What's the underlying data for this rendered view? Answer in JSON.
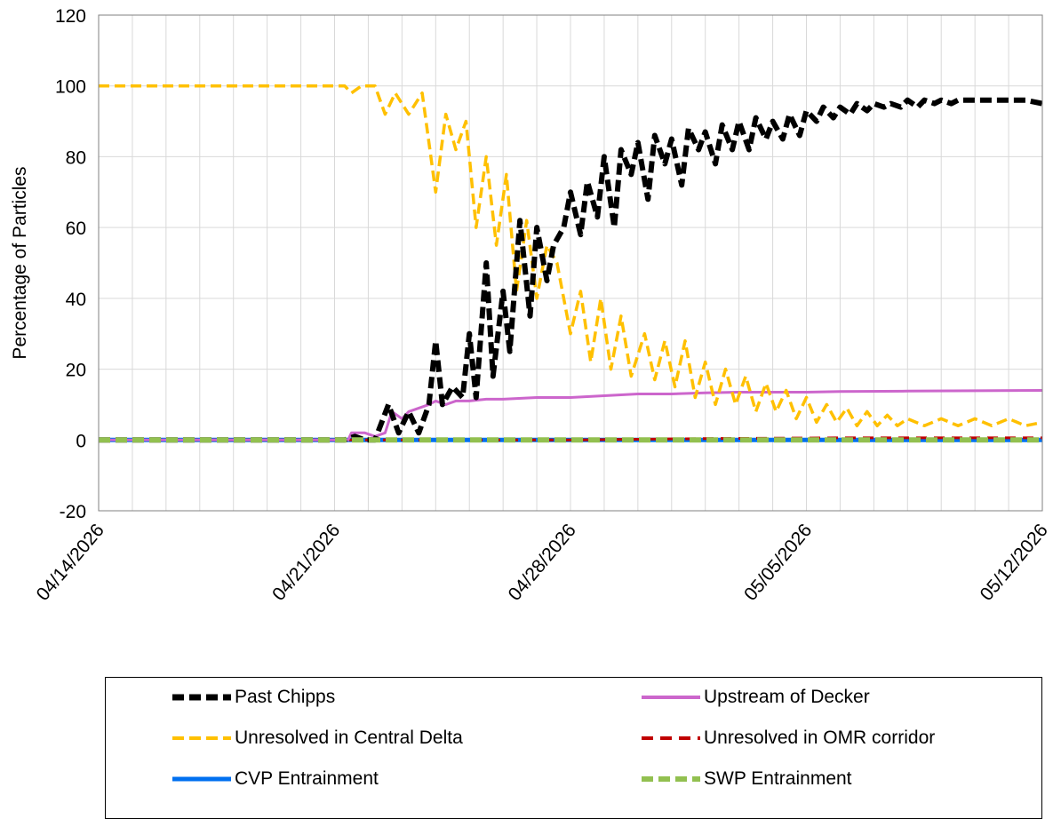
{
  "chart_data": {
    "type": "line",
    "title": "",
    "ylabel": "Percentage of Particles",
    "xlabel": "",
    "ylim": [
      -20,
      120
    ],
    "yticks": [
      -20,
      0,
      20,
      40,
      60,
      80,
      100,
      120
    ],
    "xlim": [
      "04/14/2026",
      "05/12/2026"
    ],
    "xtick_labels": [
      "04/14/2026",
      "04/21/2026",
      "04/28/2026",
      "05/05/2026",
      "05/12/2026"
    ],
    "grid": "vertical daily gridlines, horizontal gridlines at each y tick",
    "legend_position": "bottom",
    "series": [
      {
        "name": "Past Chipps",
        "color": "#000000",
        "style": "dashed",
        "points": [
          [
            0,
            0
          ],
          [
            7.3,
            0
          ],
          [
            7.6,
            1
          ],
          [
            7.9,
            0
          ],
          [
            8.2,
            0
          ],
          [
            8.6,
            10
          ],
          [
            8.9,
            2
          ],
          [
            9.2,
            8
          ],
          [
            9.5,
            2
          ],
          [
            9.8,
            10
          ],
          [
            10.0,
            28
          ],
          [
            10.2,
            10
          ],
          [
            10.5,
            15
          ],
          [
            10.8,
            12
          ],
          [
            11.0,
            30
          ],
          [
            11.2,
            12
          ],
          [
            11.5,
            50
          ],
          [
            11.7,
            18
          ],
          [
            12.0,
            42
          ],
          [
            12.2,
            25
          ],
          [
            12.5,
            62
          ],
          [
            12.8,
            35
          ],
          [
            13.0,
            60
          ],
          [
            13.3,
            45
          ],
          [
            13.5,
            55
          ],
          [
            13.8,
            60
          ],
          [
            14.0,
            70
          ],
          [
            14.3,
            58
          ],
          [
            14.5,
            73
          ],
          [
            14.8,
            63
          ],
          [
            15.0,
            80
          ],
          [
            15.3,
            60
          ],
          [
            15.5,
            82
          ],
          [
            15.8,
            75
          ],
          [
            16.0,
            84
          ],
          [
            16.3,
            68
          ],
          [
            16.5,
            86
          ],
          [
            16.8,
            78
          ],
          [
            17.0,
            85
          ],
          [
            17.3,
            72
          ],
          [
            17.5,
            88
          ],
          [
            17.8,
            82
          ],
          [
            18.0,
            87
          ],
          [
            18.3,
            78
          ],
          [
            18.5,
            89
          ],
          [
            18.8,
            82
          ],
          [
            19.0,
            90
          ],
          [
            19.3,
            82
          ],
          [
            19.5,
            91
          ],
          [
            19.8,
            85
          ],
          [
            20.0,
            90
          ],
          [
            20.3,
            85
          ],
          [
            20.5,
            92
          ],
          [
            20.8,
            86
          ],
          [
            21.0,
            93
          ],
          [
            21.3,
            90
          ],
          [
            21.5,
            94
          ],
          [
            21.8,
            91
          ],
          [
            22.0,
            94
          ],
          [
            22.3,
            92
          ],
          [
            22.5,
            95
          ],
          [
            22.8,
            93
          ],
          [
            23.0,
            95
          ],
          [
            23.3,
            94
          ],
          [
            23.5,
            95
          ],
          [
            23.8,
            94
          ],
          [
            24.0,
            96
          ],
          [
            24.3,
            94
          ],
          [
            24.5,
            96
          ],
          [
            24.8,
            95
          ],
          [
            25.0,
            96
          ],
          [
            25.3,
            95
          ],
          [
            25.5,
            96
          ],
          [
            26.0,
            96
          ],
          [
            26.5,
            96
          ],
          [
            27.0,
            96
          ],
          [
            27.5,
            96
          ],
          [
            28.0,
            95
          ]
        ]
      },
      {
        "name": "Upstream of Decker",
        "color": "#CC66CC",
        "style": "solid",
        "points": [
          [
            0,
            0
          ],
          [
            7.4,
            0
          ],
          [
            7.5,
            2
          ],
          [
            7.9,
            2
          ],
          [
            8.2,
            1
          ],
          [
            8.5,
            2
          ],
          [
            8.7,
            8
          ],
          [
            9.0,
            6
          ],
          [
            9.2,
            8
          ],
          [
            9.5,
            9
          ],
          [
            9.8,
            10
          ],
          [
            10.0,
            11
          ],
          [
            10.3,
            10
          ],
          [
            10.6,
            11
          ],
          [
            11.0,
            11
          ],
          [
            11.5,
            11.5
          ],
          [
            12.0,
            11.5
          ],
          [
            13.0,
            12
          ],
          [
            14.0,
            12
          ],
          [
            15.0,
            12.5
          ],
          [
            16.0,
            13
          ],
          [
            17.0,
            13
          ],
          [
            18.0,
            13.3
          ],
          [
            19.0,
            13.5
          ],
          [
            20.0,
            13.5
          ],
          [
            21.0,
            13.5
          ],
          [
            22.0,
            13.7
          ],
          [
            24.0,
            13.8
          ],
          [
            26.0,
            13.9
          ],
          [
            28.0,
            14
          ]
        ]
      },
      {
        "name": "Unresolved in Central Delta",
        "color": "#FFC000",
        "style": "dashed",
        "points": [
          [
            0,
            100
          ],
          [
            7.3,
            100
          ],
          [
            7.5,
            98
          ],
          [
            7.8,
            100
          ],
          [
            8.2,
            100
          ],
          [
            8.5,
            92
          ],
          [
            8.8,
            98
          ],
          [
            9.2,
            92
          ],
          [
            9.6,
            98
          ],
          [
            10.0,
            70
          ],
          [
            10.3,
            92
          ],
          [
            10.6,
            82
          ],
          [
            10.9,
            90
          ],
          [
            11.2,
            60
          ],
          [
            11.5,
            80
          ],
          [
            11.8,
            55
          ],
          [
            12.1,
            75
          ],
          [
            12.4,
            42
          ],
          [
            12.7,
            62
          ],
          [
            13.0,
            40
          ],
          [
            13.3,
            55
          ],
          [
            13.6,
            50
          ],
          [
            14.0,
            30
          ],
          [
            14.3,
            42
          ],
          [
            14.6,
            22
          ],
          [
            14.9,
            40
          ],
          [
            15.2,
            20
          ],
          [
            15.5,
            35
          ],
          [
            15.8,
            18
          ],
          [
            16.2,
            30
          ],
          [
            16.5,
            17
          ],
          [
            16.8,
            28
          ],
          [
            17.1,
            15
          ],
          [
            17.4,
            28
          ],
          [
            17.7,
            12
          ],
          [
            18.0,
            22
          ],
          [
            18.3,
            10
          ],
          [
            18.6,
            20
          ],
          [
            18.9,
            10
          ],
          [
            19.2,
            18
          ],
          [
            19.5,
            8
          ],
          [
            19.8,
            16
          ],
          [
            20.1,
            8
          ],
          [
            20.4,
            14
          ],
          [
            20.7,
            6
          ],
          [
            21.0,
            12
          ],
          [
            21.3,
            5
          ],
          [
            21.6,
            10
          ],
          [
            21.9,
            5
          ],
          [
            22.2,
            9
          ],
          [
            22.5,
            4
          ],
          [
            22.8,
            8
          ],
          [
            23.1,
            4
          ],
          [
            23.4,
            7
          ],
          [
            23.7,
            4
          ],
          [
            24.0,
            6
          ],
          [
            24.5,
            4
          ],
          [
            25.0,
            6
          ],
          [
            25.5,
            4
          ],
          [
            26.0,
            6
          ],
          [
            26.5,
            4
          ],
          [
            27.0,
            6
          ],
          [
            27.5,
            4
          ],
          [
            28.0,
            5
          ]
        ]
      },
      {
        "name": "Unresolved in OMR corridor",
        "color": "#C00000",
        "style": "dashed",
        "points": [
          [
            0,
            0
          ],
          [
            14.0,
            0
          ],
          [
            16.0,
            0.2
          ],
          [
            18.0,
            0.4
          ],
          [
            20.0,
            0.5
          ],
          [
            22.0,
            0.6
          ],
          [
            24.0,
            0.6
          ],
          [
            26.0,
            0.6
          ],
          [
            28.0,
            0.6
          ]
        ]
      },
      {
        "name": "CVP Entrainment",
        "color": "#0070F0",
        "style": "solid",
        "points": [
          [
            0,
            0
          ],
          [
            28,
            0
          ]
        ]
      },
      {
        "name": "SWP Entrainment",
        "color": "#92C050",
        "style": "dashed",
        "points": [
          [
            0,
            0
          ],
          [
            28,
            0
          ]
        ]
      }
    ]
  },
  "legend": {
    "items": [
      {
        "label": "Past Chipps",
        "color": "#000000",
        "style": "dashed"
      },
      {
        "label": "Upstream of Decker",
        "color": "#CC66CC",
        "style": "solid"
      },
      {
        "label": "Unresolved in Central Delta",
        "color": "#FFC000",
        "style": "dashed"
      },
      {
        "label": "Unresolved in OMR corridor",
        "color": "#C00000",
        "style": "dashed"
      },
      {
        "label": "CVP Entrainment",
        "color": "#0070F0",
        "style": "solid"
      },
      {
        "label": "SWP Entrainment",
        "color": "#92C050",
        "style": "dashed"
      }
    ]
  }
}
